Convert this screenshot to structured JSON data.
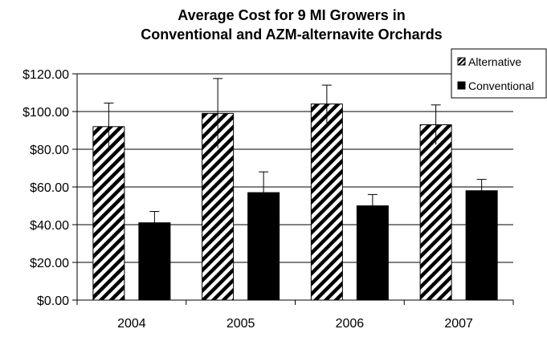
{
  "chart_data": {
    "type": "bar",
    "title_lines": [
      "Average Cost for 9 MI Growers in",
      "Conventional and AZM-alternavite Orchards"
    ],
    "xlabel": "",
    "ylabel": "",
    "categories": [
      "2004",
      "2005",
      "2006",
      "2007"
    ],
    "ylim": [
      0,
      120
    ],
    "yticks": [
      0,
      20,
      40,
      60,
      80,
      100,
      120
    ],
    "ytick_labels": [
      "$0.00",
      "$20.00",
      "$40.00",
      "$60.00",
      "$80.00",
      "$100.00",
      "$120.00"
    ],
    "grid": "horizontal",
    "legend_position": "top-right",
    "series": [
      {
        "name": "Alternative",
        "pattern": "diagonal-hatch",
        "color": "#000000",
        "values": [
          92,
          99,
          104,
          93
        ],
        "error": [
          12.5,
          18.5,
          10,
          10.5
        ]
      },
      {
        "name": "Conventional",
        "pattern": "solid",
        "color": "#000000",
        "values": [
          41,
          57,
          50,
          58
        ],
        "error": [
          6,
          11,
          6,
          6
        ]
      }
    ]
  }
}
